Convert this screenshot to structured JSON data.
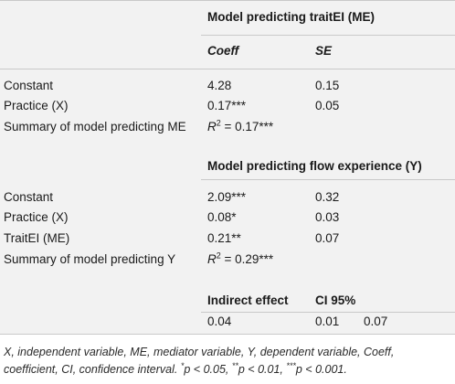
{
  "table": {
    "model1_heading": "Model predicting traitEI (ME)",
    "col_coeff": "Coeff",
    "col_se": "SE",
    "rows1": [
      {
        "label": "Constant",
        "coeff": "4.28",
        "se": "0.15"
      },
      {
        "label": "Practice (X)",
        "coeff": "0.17***",
        "se": "0.05"
      }
    ],
    "summary1_label": "Summary of model predicting ME",
    "summary1_r": "R",
    "summary1_sup": "2",
    "summary1_value": " = 0.17***",
    "model2_heading": "Model predicting flow experience (Y)",
    "rows2": [
      {
        "label": "Constant",
        "coeff": "2.09***",
        "se": "0.32"
      },
      {
        "label": "Practice (X)",
        "coeff": "0.08*",
        "se": "0.03"
      },
      {
        "label": "TraitEI (ME)",
        "coeff": "0.21**",
        "se": "0.07"
      }
    ],
    "summary2_label": "Summary of model predicting Y",
    "summary2_r": "R",
    "summary2_sup": "2",
    "summary2_value": " = 0.29***",
    "indirect_heading": "Indirect effect",
    "ci_heading": "CI 95%",
    "indirect_value": "0.04",
    "ci_low": "0.01",
    "ci_high": "0.07"
  },
  "footnote": {
    "part1": "X, independent variable, ME, mediator variable, Y, dependent variable, Coeff, coefficient, CI, confidence interval. ",
    "s1": "*",
    "p1": "p < 0.05, ",
    "s2": "**",
    "p2": "p < 0.01, ",
    "s3": "***",
    "p3": "p < 0.001."
  }
}
